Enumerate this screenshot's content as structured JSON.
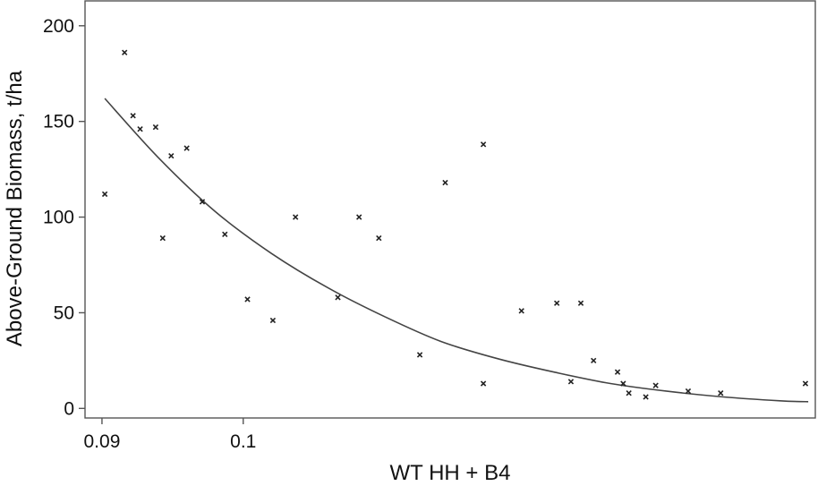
{
  "chart_data": {
    "type": "scatter",
    "xlabel": "WT HH + B4",
    "ylabel": "Above-Ground Biomass, t/ha",
    "xlim": [
      0.0888,
      0.1405
    ],
    "ylim": [
      -5,
      213
    ],
    "x_ticks": [
      {
        "value": 0.09,
        "label": "0.09"
      },
      {
        "value": 0.1,
        "label": "0.1"
      }
    ],
    "y_ticks": [
      {
        "value": 0,
        "label": "0"
      },
      {
        "value": 50,
        "label": "50"
      },
      {
        "value": 100,
        "label": "100"
      },
      {
        "value": 150,
        "label": "150"
      },
      {
        "value": 200,
        "label": "200"
      }
    ],
    "grid": false,
    "legend": "none",
    "points": [
      {
        "x": 0.0902,
        "y": 112
      },
      {
        "x": 0.0916,
        "y": 186
      },
      {
        "x": 0.0922,
        "y": 153
      },
      {
        "x": 0.0927,
        "y": 146
      },
      {
        "x": 0.0938,
        "y": 147
      },
      {
        "x": 0.0943,
        "y": 89
      },
      {
        "x": 0.0949,
        "y": 132
      },
      {
        "x": 0.096,
        "y": 136
      },
      {
        "x": 0.0971,
        "y": 108
      },
      {
        "x": 0.0987,
        "y": 91
      },
      {
        "x": 0.1003,
        "y": 57
      },
      {
        "x": 0.1021,
        "y": 46
      },
      {
        "x": 0.1037,
        "y": 100
      },
      {
        "x": 0.1067,
        "y": 58
      },
      {
        "x": 0.1082,
        "y": 100
      },
      {
        "x": 0.1096,
        "y": 89
      },
      {
        "x": 0.1125,
        "y": 28
      },
      {
        "x": 0.1143,
        "y": 118
      },
      {
        "x": 0.117,
        "y": 138
      },
      {
        "x": 0.117,
        "y": 13
      },
      {
        "x": 0.1197,
        "y": 51
      },
      {
        "x": 0.1222,
        "y": 55
      },
      {
        "x": 0.1232,
        "y": 14
      },
      {
        "x": 0.1239,
        "y": 55
      },
      {
        "x": 0.1248,
        "y": 25
      },
      {
        "x": 0.1265,
        "y": 19
      },
      {
        "x": 0.1269,
        "y": 13
      },
      {
        "x": 0.1273,
        "y": 8
      },
      {
        "x": 0.1285,
        "y": 6
      },
      {
        "x": 0.1292,
        "y": 12
      },
      {
        "x": 0.1315,
        "y": 9
      },
      {
        "x": 0.1338,
        "y": 8
      },
      {
        "x": 0.1398,
        "y": 13
      }
    ],
    "fit_curve": [
      {
        "x": 0.0902,
        "y": 162
      },
      {
        "x": 0.094,
        "y": 131
      },
      {
        "x": 0.098,
        "y": 103
      },
      {
        "x": 0.102,
        "y": 81
      },
      {
        "x": 0.106,
        "y": 63
      },
      {
        "x": 0.11,
        "y": 48
      },
      {
        "x": 0.114,
        "y": 35
      },
      {
        "x": 0.118,
        "y": 26
      },
      {
        "x": 0.122,
        "y": 19
      },
      {
        "x": 0.126,
        "y": 13
      },
      {
        "x": 0.13,
        "y": 9
      },
      {
        "x": 0.134,
        "y": 6
      },
      {
        "x": 0.138,
        "y": 4
      },
      {
        "x": 0.14,
        "y": 3.5
      }
    ]
  }
}
